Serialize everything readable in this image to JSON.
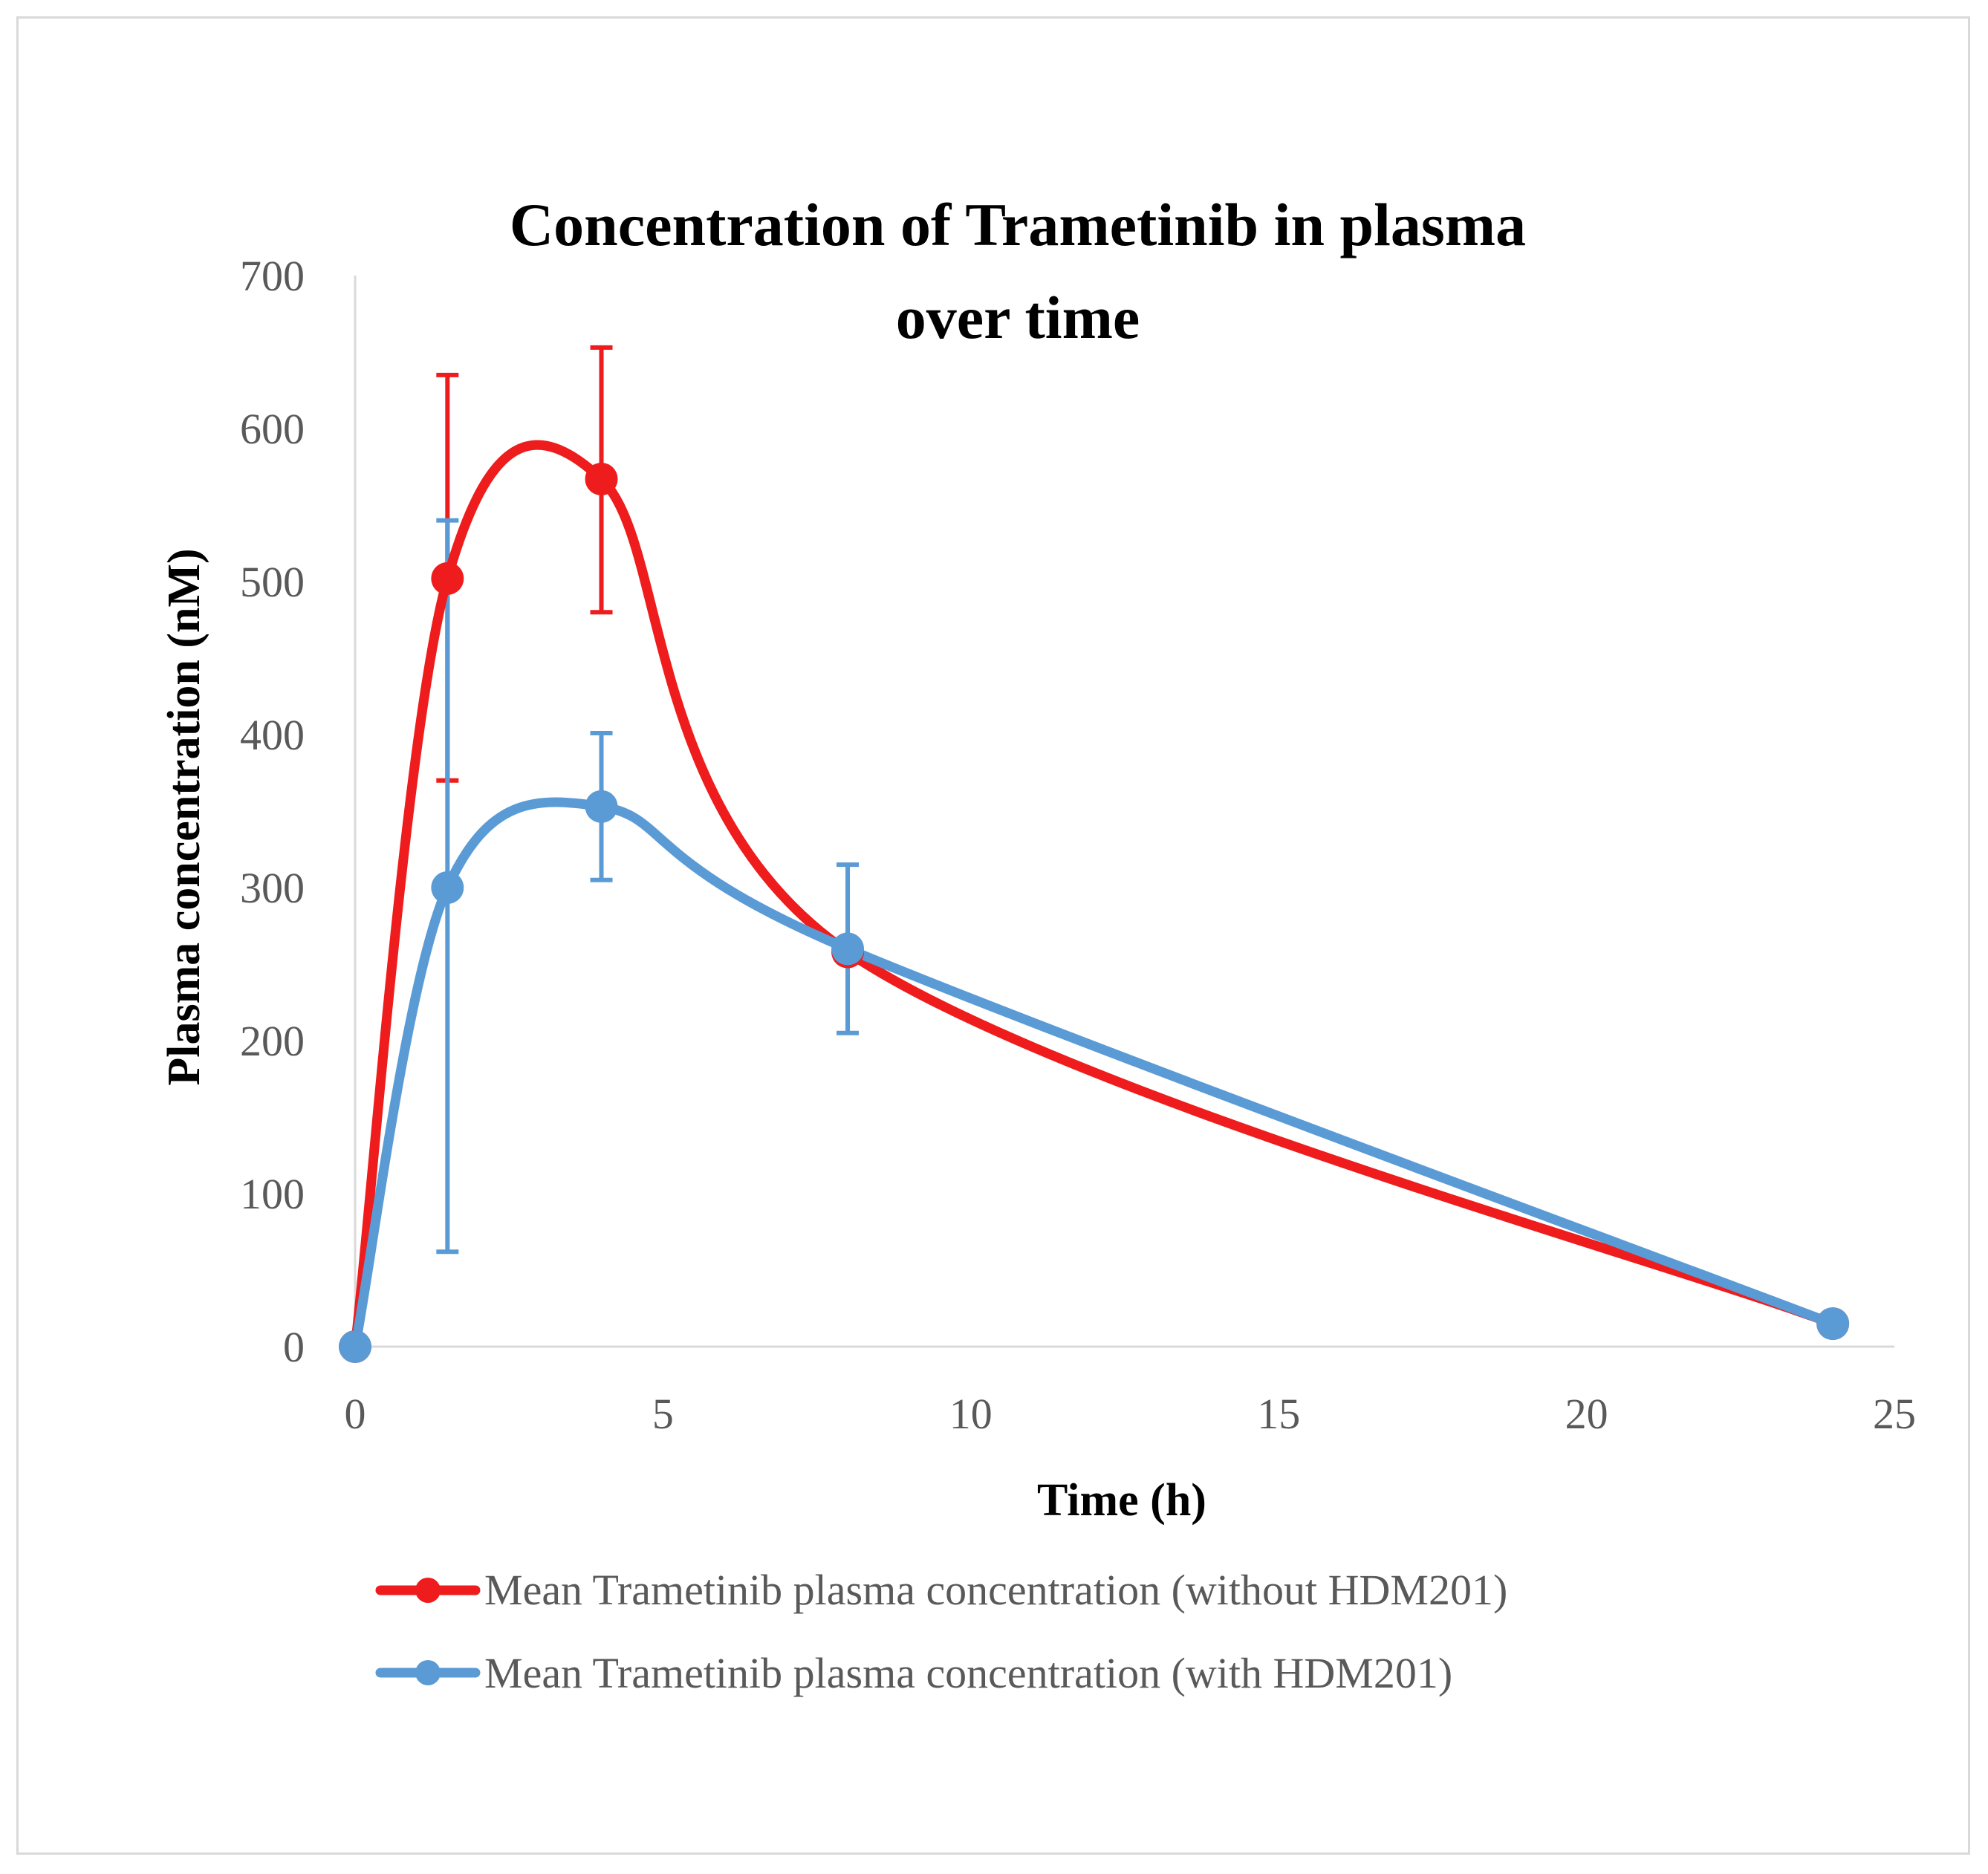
{
  "chart_data": {
    "type": "line",
    "title": "Concentration of Trametinib in plasma over time",
    "title_lines": [
      "Concentration of Trametinib in plasma",
      "over time"
    ],
    "xlabel": "Time (h)",
    "ylabel": "Plasma concentration (nM)",
    "xlim": [
      0,
      25
    ],
    "ylim": [
      0,
      700
    ],
    "x_ticks": [
      0,
      5,
      10,
      15,
      20,
      25
    ],
    "y_ticks": [
      0,
      100,
      200,
      300,
      400,
      500,
      600,
      700
    ],
    "grid": false,
    "smoothed": true,
    "legend_position": "bottom",
    "series": [
      {
        "name": "Mean Trametinib plasma concentration (without HDM201)",
        "color": "#ee1c1c",
        "x": [
          0,
          1.5,
          4,
          8,
          24
        ],
        "y": [
          0,
          502,
          567,
          258,
          15
        ],
        "error_low": [
          null,
          370,
          480,
          null,
          null
        ],
        "error_high": [
          null,
          635,
          653,
          null,
          null
        ]
      },
      {
        "name": "Mean Trametinib plasma concentration (with HDM201)",
        "color": "#5b9bd5",
        "x": [
          0,
          1.5,
          4,
          8,
          24
        ],
        "y": [
          0,
          300,
          353,
          260,
          15
        ],
        "error_low": [
          null,
          62,
          305,
          205,
          null
        ],
        "error_high": [
          null,
          540,
          401,
          315,
          null
        ]
      }
    ]
  }
}
